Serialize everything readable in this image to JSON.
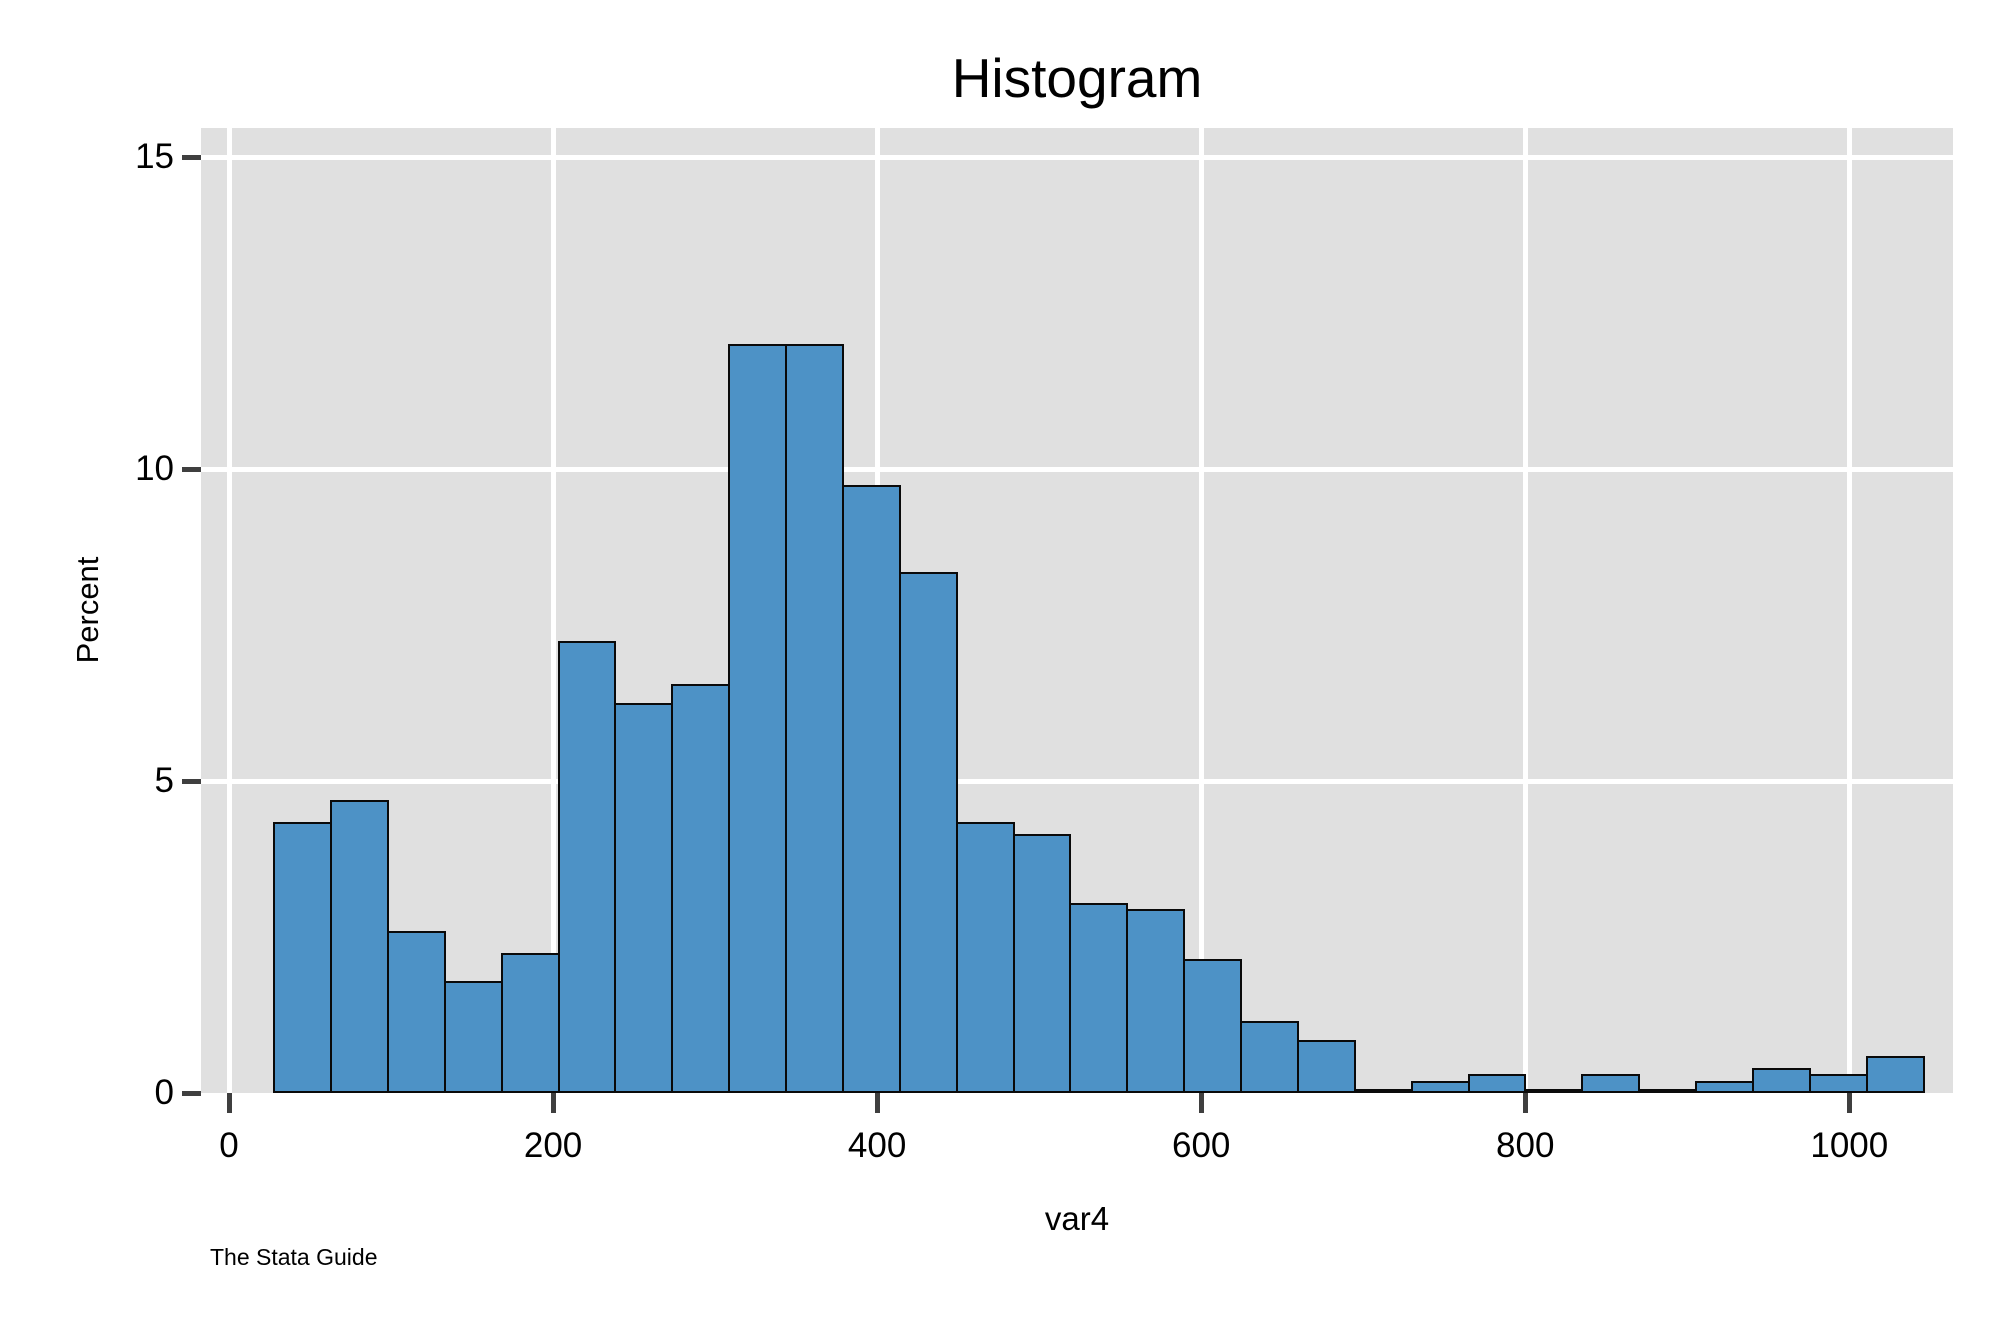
{
  "caption": "The Stata Guide",
  "colors": {
    "page_bg": "#ffffff",
    "plot_bg": "#e0e0e0",
    "grid": "#ffffff",
    "bar_fill": "#4d92c6",
    "bar_border": "#0a0a0a",
    "tick": "#3f3f3f",
    "text": "#000000"
  },
  "chart_data": {
    "type": "bar",
    "subtype": "histogram",
    "title": "Histogram",
    "xlabel": "var4",
    "ylabel": "Percent",
    "xlim": [
      -17.3,
      1064
    ],
    "ylim": [
      0,
      15.47
    ],
    "xticks": [
      0,
      200,
      400,
      600,
      800,
      1000
    ],
    "yticks": [
      0,
      5,
      10,
      15
    ],
    "grid": true,
    "legend_position": "none",
    "bin_start": 27.3,
    "bin_width": 35.1,
    "values_percent": [
      4.35,
      4.7,
      2.6,
      1.8,
      2.25,
      7.25,
      6.25,
      6.55,
      12.0,
      12.0,
      9.75,
      8.35,
      4.35,
      4.15,
      3.05,
      2.95,
      2.15,
      1.15,
      0.85,
      0.06,
      0.2,
      0.3,
      0.06,
      0.3,
      0.07,
      0.2,
      0.4,
      0.3,
      0.6
    ]
  }
}
